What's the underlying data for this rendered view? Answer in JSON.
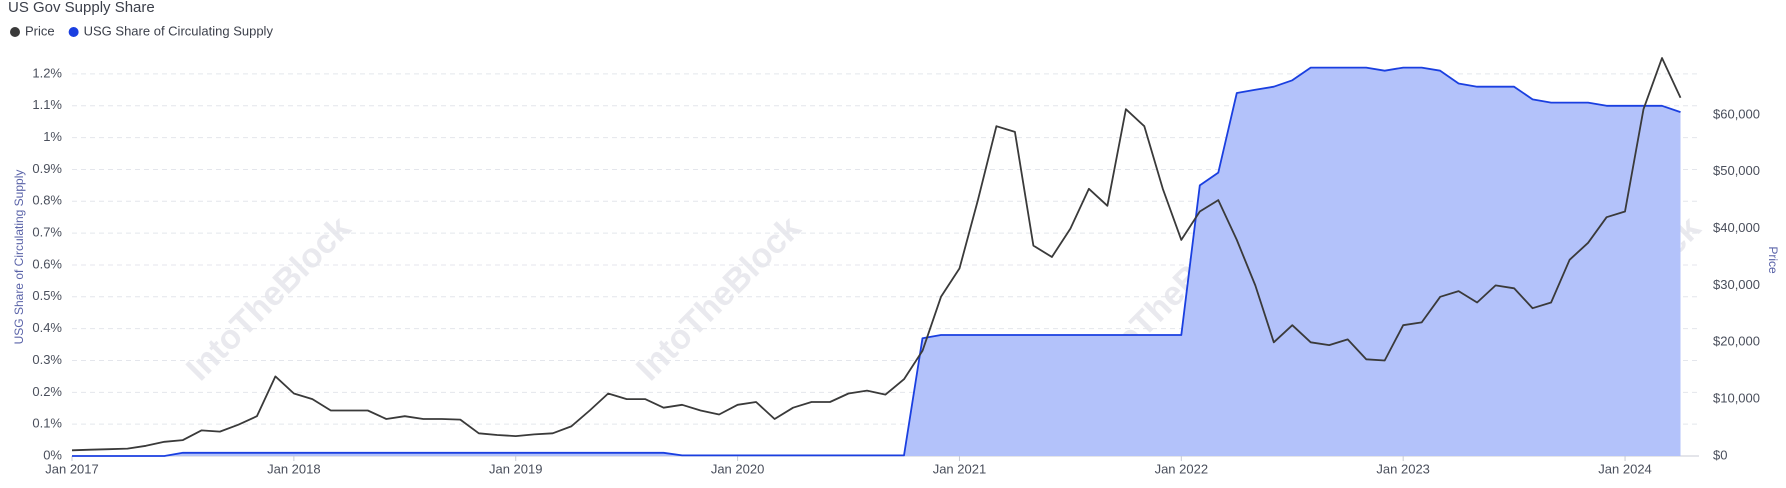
{
  "chart_data": {
    "type": "line",
    "title": "US Gov Supply Share",
    "watermark": "IntoTheBlock",
    "y_label": "USG Share of Circulating Supply",
    "y2_label": "Price",
    "x": [
      "2017-01",
      "2017-02",
      "2017-03",
      "2017-04",
      "2017-05",
      "2017-06",
      "2017-07",
      "2017-08",
      "2017-09",
      "2017-10",
      "2017-11",
      "2017-12",
      "2018-01",
      "2018-02",
      "2018-03",
      "2018-04",
      "2018-05",
      "2018-06",
      "2018-07",
      "2018-08",
      "2018-09",
      "2018-10",
      "2018-11",
      "2018-12",
      "2019-01",
      "2019-02",
      "2019-03",
      "2019-04",
      "2019-05",
      "2019-06",
      "2019-07",
      "2019-08",
      "2019-09",
      "2019-10",
      "2019-11",
      "2019-12",
      "2020-01",
      "2020-02",
      "2020-03",
      "2020-04",
      "2020-05",
      "2020-06",
      "2020-07",
      "2020-08",
      "2020-09",
      "2020-10",
      "2020-11",
      "2020-12",
      "2021-01",
      "2021-02",
      "2021-03",
      "2021-04",
      "2021-05",
      "2021-06",
      "2021-07",
      "2021-08",
      "2021-09",
      "2021-10",
      "2021-11",
      "2021-12",
      "2022-01",
      "2022-02",
      "2022-03",
      "2022-04",
      "2022-05",
      "2022-06",
      "2022-07",
      "2022-08",
      "2022-09",
      "2022-10",
      "2022-11",
      "2022-12",
      "2023-01",
      "2023-02",
      "2023-03",
      "2023-04",
      "2023-05",
      "2023-06",
      "2023-07",
      "2023-08",
      "2023-09",
      "2023-10",
      "2023-11",
      "2023-12",
      "2024-01",
      "2024-02",
      "2024-03",
      "2024-04"
    ],
    "series": [
      {
        "name": "Price",
        "color": "#3a3a3a",
        "axis": "y2",
        "values": [
          1000,
          1100,
          1200,
          1300,
          1800,
          2500,
          2800,
          4500,
          4300,
          5500,
          7000,
          14000,
          11000,
          10000,
          8000,
          8000,
          8000,
          6500,
          7000,
          6500,
          6500,
          6400,
          4000,
          3700,
          3500,
          3800,
          4000,
          5200,
          8000,
          11000,
          10000,
          10000,
          8500,
          9000,
          8000,
          7300,
          9000,
          9500,
          6500,
          8500,
          9500,
          9500,
          11000,
          11500,
          10800,
          13500,
          18500,
          28000,
          33000,
          45000,
          58000,
          57000,
          37000,
          35000,
          40000,
          47000,
          44000,
          61000,
          58000,
          47000,
          38000,
          43000,
          45000,
          38000,
          30000,
          20000,
          23000,
          20000,
          19500,
          20500,
          17000,
          16800,
          23000,
          23500,
          28000,
          29000,
          27000,
          30000,
          29500,
          26000,
          27000,
          34500,
          37500,
          42000,
          43000,
          61000,
          70000,
          63000
        ]
      },
      {
        "name": "USG Share of Circulating Supply",
        "color": "#1a3fe0",
        "fill": "#b3c2fa",
        "values": [
          0,
          0,
          0,
          0,
          0,
          0,
          0.01,
          0.01,
          0.01,
          0.01,
          0.01,
          0.01,
          0.01,
          0.01,
          0.01,
          0.01,
          0.01,
          0.01,
          0.01,
          0.01,
          0.01,
          0.01,
          0.01,
          0.01,
          0.01,
          0.01,
          0.01,
          0.01,
          0.01,
          0.01,
          0.01,
          0.01,
          0.01,
          0.002,
          0.002,
          0.002,
          0.002,
          0.002,
          0.002,
          0.002,
          0.002,
          0.002,
          0.002,
          0.002,
          0.002,
          0.002,
          0.37,
          0.38,
          0.38,
          0.38,
          0.38,
          0.38,
          0.38,
          0.38,
          0.38,
          0.38,
          0.38,
          0.38,
          0.38,
          0.38,
          0.38,
          0.85,
          0.89,
          1.14,
          1.15,
          1.16,
          1.18,
          1.22,
          1.22,
          1.22,
          1.22,
          1.21,
          1.22,
          1.22,
          1.21,
          1.17,
          1.16,
          1.16,
          1.16,
          1.12,
          1.11,
          1.11,
          1.11,
          1.1,
          1.1,
          1.1,
          1.1,
          1.08
        ]
      }
    ],
    "xlim": [
      "2017-01",
      "2024-05"
    ],
    "xticks": [
      {
        "value": "2017-01",
        "label": "Jan 2017"
      },
      {
        "value": "2018-01",
        "label": "Jan 2018"
      },
      {
        "value": "2019-01",
        "label": "Jan 2019"
      },
      {
        "value": "2020-01",
        "label": "Jan 2020"
      },
      {
        "value": "2021-01",
        "label": "Jan 2021"
      },
      {
        "value": "2022-01",
        "label": "Jan 2022"
      },
      {
        "value": "2023-01",
        "label": "Jan 2023"
      },
      {
        "value": "2024-01",
        "label": "Jan 2024"
      }
    ],
    "ylim": [
      0,
      1.25
    ],
    "yticks": [
      {
        "value": 0,
        "label": "0%"
      },
      {
        "value": 0.1,
        "label": "0.1%"
      },
      {
        "value": 0.2,
        "label": "0.2%"
      },
      {
        "value": 0.3,
        "label": "0.3%"
      },
      {
        "value": 0.4,
        "label": "0.4%"
      },
      {
        "value": 0.5,
        "label": "0.5%"
      },
      {
        "value": 0.6,
        "label": "0.6%"
      },
      {
        "value": 0.7,
        "label": "0.7%"
      },
      {
        "value": 0.8,
        "label": "0.8%"
      },
      {
        "value": 0.9,
        "label": "0.9%"
      },
      {
        "value": 1,
        "label": "1%"
      },
      {
        "value": 1.1,
        "label": "1.1%"
      },
      {
        "value": 1.2,
        "label": "1.2%"
      }
    ],
    "y2lim": [
      0,
      70000
    ],
    "y2ticks": [
      {
        "value": 0,
        "label": "$0"
      },
      {
        "value": 10000,
        "label": "$10,000"
      },
      {
        "value": 20000,
        "label": "$20,000"
      },
      {
        "value": 30000,
        "label": "$30,000"
      },
      {
        "value": 40000,
        "label": "$40,000"
      },
      {
        "value": 50000,
        "label": "$50,000"
      },
      {
        "value": 60000,
        "label": "$60,000"
      }
    ],
    "grid": true
  }
}
